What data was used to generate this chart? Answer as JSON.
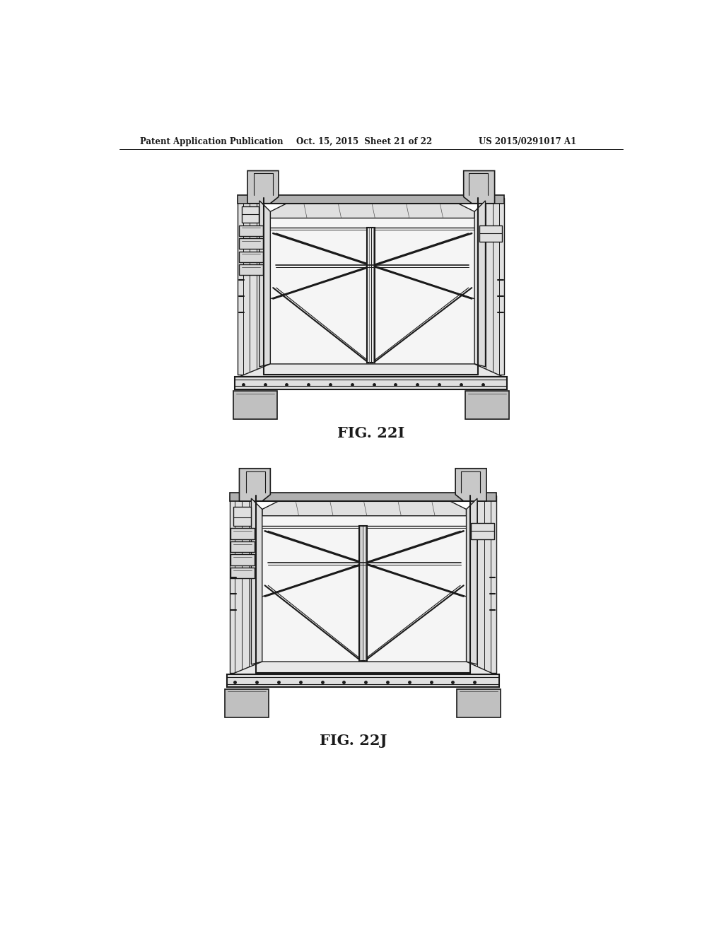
{
  "background_color": "#ffffff",
  "header_text": "Patent Application Publication",
  "header_date": "Oct. 15, 2015  Sheet 21 of 22",
  "header_patent": "US 2015/0291017 A1",
  "fig1_label": "FIG. 22I",
  "fig2_label": "FIG. 22J",
  "line_color": "#1a1a1a",
  "light_line_color": "#555555",
  "gray_fill": "#c8c8c8",
  "light_gray": "#e0e0e0",
  "mid_gray": "#b0b0b0"
}
